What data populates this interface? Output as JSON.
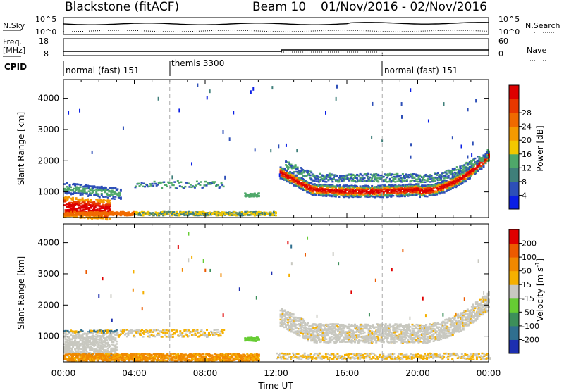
{
  "header": {
    "title": "Blackstone (fitACF)",
    "beam": "Beam 10",
    "date_range": "01/Nov/2016 - 02/Nov/2016"
  },
  "left_labels": {
    "nsky": "N.Sky",
    "nsky_top": "10^5",
    "nsky_bottom": "10^0",
    "freq_line1": "Freq.",
    "freq_line2": "[MHz]",
    "freq_top": "18",
    "freq_bottom": "8",
    "cpid": "CPID"
  },
  "right_labels": {
    "nsearch": "N.Search",
    "nsearch_top": "10^5",
    "nsearch_bottom": "10^0",
    "nave": "Nave",
    "nave_top": "60",
    "nave_bottom": "0"
  },
  "cpid_segments": [
    {
      "start": 0,
      "label": "normal (fast) 151"
    },
    {
      "start": 6,
      "label": "themis 3300"
    },
    {
      "start": 18,
      "label": "normal (fast) 151"
    }
  ],
  "power_colorbar": {
    "title": "Power [dB]",
    "ticks": [
      "4",
      "8",
      "12",
      "16",
      "20",
      "24",
      "28"
    ],
    "colors": [
      "#0a1ee6",
      "#2d4fb8",
      "#3f7f7a",
      "#4fa86a",
      "#f2c800",
      "#f59a00",
      "#f06a00",
      "#e83800",
      "#dd0000"
    ]
  },
  "velocity_colorbar": {
    "title": "Velocity [m s",
    "title_exp": "-1",
    "title_end": "]",
    "ticks": [
      "200",
      "100",
      "50",
      "15",
      "-15",
      "-50",
      "-100",
      "-200"
    ],
    "colors": [
      "#1d2fb0",
      "#2f6f8f",
      "#3c8f5a",
      "#66cc33",
      "#c8c8c0",
      "#f5b000",
      "#f08800",
      "#ec5a00",
      "#e00000"
    ]
  },
  "chart_data": [
    {
      "type": "heatmap",
      "name": "power",
      "ylabel": "Slant Range [km]",
      "xlim": [
        0,
        24
      ],
      "ylim": [
        180,
        4600
      ],
      "yticks": [
        1000,
        2000,
        3000,
        4000
      ],
      "xticks": [
        "00:00",
        "04:00",
        "08:00",
        "12:00",
        "16:00",
        "20:00",
        "00:00"
      ],
      "xlabel": "Time UT",
      "cpid_boundaries_hours": [
        6,
        18
      ]
    },
    {
      "type": "heatmap",
      "name": "velocity",
      "ylabel": "Slant Range [km]",
      "xlim": [
        0,
        24
      ],
      "ylim": [
        180,
        4600
      ],
      "yticks": [
        1000,
        2000,
        3000,
        4000
      ],
      "xticks": [
        "00:00",
        "04:00",
        "08:00",
        "12:00",
        "16:00",
        "20:00",
        "00:00"
      ],
      "xlabel": "Time UT",
      "cpid_boundaries_hours": [
        6,
        18
      ]
    }
  ]
}
